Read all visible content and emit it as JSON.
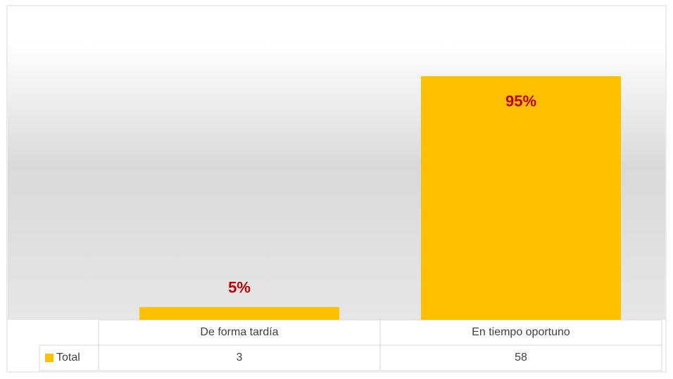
{
  "chart_data": {
    "type": "bar",
    "categories": [
      "De forma tardía",
      "En tiempo oportuno"
    ],
    "series": [
      {
        "name": "Total",
        "color": "#ffc000",
        "values": [
          5,
          95
        ],
        "value_labels": [
          "5%",
          "95%"
        ]
      }
    ],
    "table": {
      "rows": [
        {
          "name": "Total",
          "values": [
            3,
            58
          ]
        }
      ]
    }
  }
}
